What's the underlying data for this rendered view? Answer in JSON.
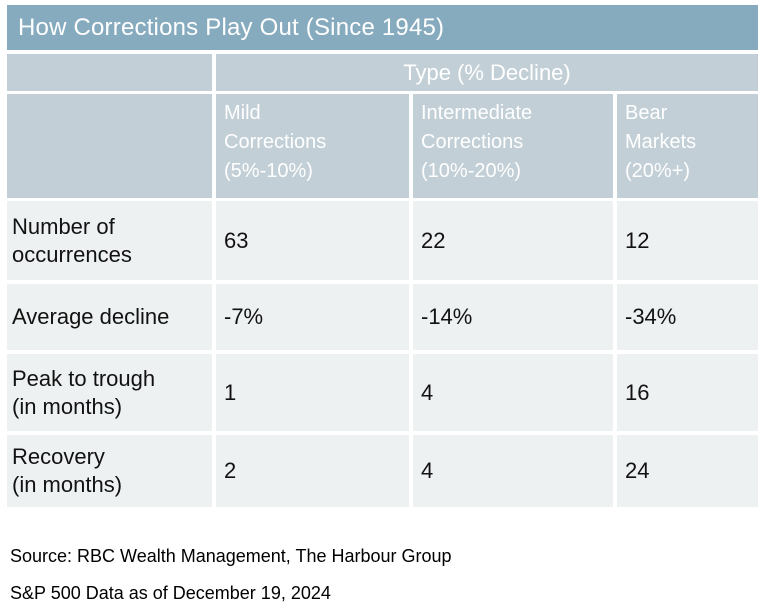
{
  "colors": {
    "title_bar_bg": "#86aabe",
    "header_bg": "#c2cfd6",
    "body_cell_bg": "#eef1f2",
    "header_text": "#ffffff",
    "body_text": "#121212",
    "separator": "#ffffff"
  },
  "chart_data": {
    "type": "table",
    "title": "How Corrections Play Out (Since 1945)",
    "group_header": "Type (% Decline)",
    "columns": [
      "Mild Corrections (5%-10%)",
      "Intermediate Corrections (10%-20%)",
      "Bear Markets (20%+)"
    ],
    "rows": [
      {
        "label": "Number of occurrences",
        "values": [
          63,
          22,
          12
        ]
      },
      {
        "label": "Average decline",
        "values": [
          "-7%",
          "-14%",
          "-34%"
        ]
      },
      {
        "label": "Peak to trough (in months)",
        "values": [
          1,
          4,
          16
        ]
      },
      {
        "label": "Recovery (in months)",
        "values": [
          2,
          4,
          24
        ]
      }
    ],
    "footnotes": [
      "Source: RBC Wealth Management, The Harbour Group",
      "S&P 500 Data as of December 19, 2024"
    ]
  },
  "display": {
    "title": "How Corrections Play Out (Since 1945)",
    "group_header": "Type (% Decline)",
    "columns": [
      "Mild\nCorrections\n(5%-10%)",
      "Intermediate\nCorrections\n(10%-20%)",
      "Bear\nMarkets\n(20%+)"
    ],
    "rows": [
      {
        "label": "Number of\noccurrences",
        "values": [
          "63",
          "22",
          "12"
        ]
      },
      {
        "label": "Average decline",
        "values": [
          "-7%",
          "-14%",
          "-34%"
        ]
      },
      {
        "label": "Peak to trough\n(in months)",
        "values": [
          "1",
          "4",
          "16"
        ]
      },
      {
        "label": "Recovery\n(in months)",
        "values": [
          "2",
          "4",
          "24"
        ]
      }
    ],
    "source_line": "Source: RBC Wealth Management, The Harbour Group",
    "asof_line": "S&P 500 Data as of December 19, 2024"
  }
}
